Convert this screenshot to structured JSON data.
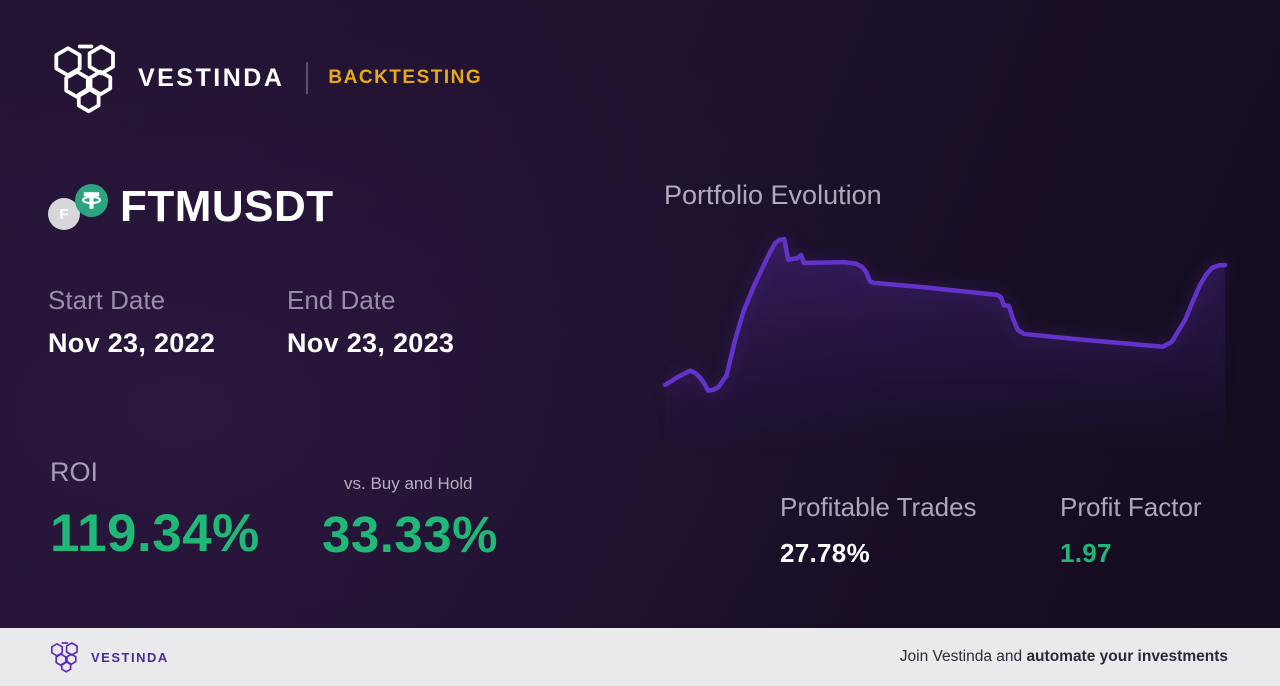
{
  "header": {
    "brand": "VESTINDA",
    "badge": "BACKTESTING"
  },
  "pair": {
    "symbol": "FTMUSDT",
    "base_letter": "F",
    "quote_icon": "tether"
  },
  "dates": {
    "start_label": "Start Date",
    "start_value": "Nov 23, 2022",
    "end_label": "End Date",
    "end_value": "Nov 23, 2023"
  },
  "metrics": {
    "roi": {
      "label": "ROI",
      "value": "119.34%"
    },
    "vs_buy_hold": {
      "label": "vs. Buy and Hold",
      "value": "33.33%"
    },
    "profitable_trades": {
      "label": "Profitable Trades",
      "value": "27.78%"
    },
    "profit_factor": {
      "label": "Profit Factor",
      "value": "1.97"
    }
  },
  "chart": {
    "title": "Portfolio Evolution"
  },
  "chart_data": {
    "type": "line",
    "title": "Portfolio Evolution",
    "axes_visible": false,
    "grid": false,
    "legend": false,
    "units": "percent_of_plot_area (x: 0-100 left-to-right over Nov 23 2022 - Nov 23 2023; y: 0-100 top-to-bottom, unlabeled)",
    "series": [
      {
        "name": "portfolio-value",
        "points": [
          [
            0,
            94
          ],
          [
            2.3,
            89
          ],
          [
            4.5,
            85
          ],
          [
            5.4,
            86.5
          ],
          [
            6.3,
            89.5
          ],
          [
            7,
            93
          ],
          [
            7.7,
            97.5
          ],
          [
            8.6,
            97
          ],
          [
            9.5,
            95.5
          ],
          [
            11,
            88
          ],
          [
            12.5,
            66
          ],
          [
            14,
            48
          ],
          [
            16,
            31
          ],
          [
            17.5,
            20
          ],
          [
            18.8,
            10.5
          ],
          [
            19.7,
            5
          ],
          [
            20.5,
            3
          ],
          [
            21.3,
            2.5
          ],
          [
            22,
            15.5
          ],
          [
            23.6,
            14.5
          ],
          [
            24.3,
            12.5
          ],
          [
            24.8,
            17.5
          ],
          [
            25.5,
            17.5
          ],
          [
            32,
            17
          ],
          [
            34.1,
            18
          ],
          [
            35.2,
            20
          ],
          [
            35.9,
            23
          ],
          [
            36.6,
            29
          ],
          [
            37.3,
            30
          ],
          [
            45.5,
            32.5
          ],
          [
            59.3,
            37.5
          ],
          [
            60,
            39
          ],
          [
            60.5,
            44
          ],
          [
            61.4,
            44.5
          ],
          [
            62.1,
            52
          ],
          [
            63,
            59.5
          ],
          [
            64.1,
            62
          ],
          [
            74.1,
            65.5
          ],
          [
            84.8,
            68.8
          ],
          [
            88.9,
            70
          ],
          [
            90.5,
            67
          ],
          [
            91.7,
            60
          ],
          [
            92.9,
            53
          ],
          [
            94.2,
            42
          ],
          [
            95.5,
            31.5
          ],
          [
            96.6,
            25
          ],
          [
            97.7,
            20.5
          ],
          [
            99,
            19
          ],
          [
            100,
            18.8
          ]
        ]
      }
    ]
  },
  "footer": {
    "brand": "VESTINDA",
    "cta_regular": "Join Vestinda and ",
    "cta_bold": "automate your investments"
  },
  "colors": {
    "accent-green": "#1fb877",
    "line-purple": "#6233c8",
    "badge-yellow": "#e7a917",
    "brand-purple": "#5b2db8",
    "footer-bg": "#eaeaec",
    "bg-dark": "#1c102a"
  }
}
